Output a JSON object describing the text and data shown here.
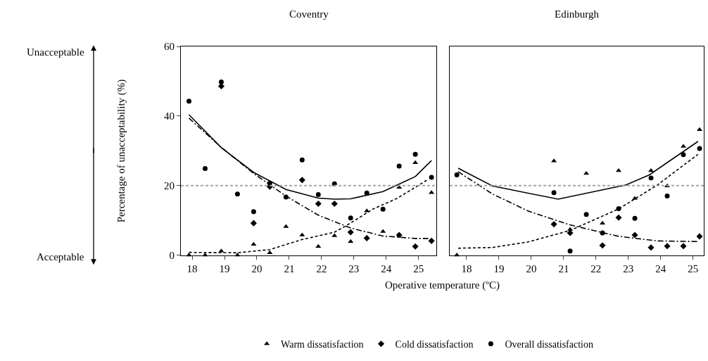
{
  "chart_data": [
    {
      "type": "scatter",
      "title": "Coventry",
      "xlabel": "Operative temperature (ºC)",
      "ylabel": "Percentage of unacceptability (%)",
      "annotations": [
        "Unacceptable",
        "Acceptable"
      ],
      "xlim": [
        17.65,
        25.55
      ],
      "xticks": [
        18,
        19,
        20,
        21,
        22,
        23,
        24,
        25
      ],
      "ylim": [
        0,
        60
      ],
      "yticks": [
        0,
        20,
        40,
        60
      ],
      "legend": "bottom",
      "ref_lines": [
        {
          "axis": "y",
          "value": 20,
          "color": "#a6a6a6",
          "line_style": "dashed"
        }
      ],
      "series": [
        {
          "type": "scatter",
          "name": "Warm dissatisfaction",
          "marker": "triangle",
          "color": "#000000",
          "x": [
            17.9,
            18.4,
            18.9,
            19.4,
            19.9,
            20.4,
            20.9,
            21.4,
            21.9,
            22.4,
            22.9,
            23.4,
            23.9,
            24.4,
            24.9,
            25.4
          ],
          "values": [
            0,
            0,
            1.2,
            0,
            3.1,
            0.7,
            8.2,
            5.8,
            2.5,
            5.6,
            3.9,
            12.7,
            6.8,
            19.5,
            26.6,
            18.0
          ]
        },
        {
          "type": "scatter",
          "name": "Cold dissatisfaction",
          "marker": "diamond",
          "color": "#000000",
          "x": [
            18.9,
            19.9,
            20.4,
            21.4,
            21.9,
            22.4,
            22.9,
            23.4,
            24.4,
            24.9,
            25.4
          ],
          "values": [
            48.6,
            9.2,
            19.7,
            21.6,
            14.8,
            14.8,
            6.6,
            4.9,
            5.8,
            2.5,
            4.1
          ]
        },
        {
          "type": "scatter",
          "name": "Overall dissatisfaction",
          "marker": "circle",
          "color": "#000000",
          "x": [
            17.9,
            18.4,
            18.9,
            19.4,
            19.9,
            20.4,
            20.9,
            21.4,
            21.9,
            22.4,
            22.9,
            23.4,
            23.9,
            24.4,
            24.9,
            25.4
          ],
          "values": [
            44.3,
            24.9,
            49.8,
            17.6,
            12.5,
            20.7,
            16.7,
            27.4,
            17.4,
            20.5,
            10.7,
            17.9,
            13.2,
            25.6,
            29.0,
            22.4
          ]
        },
        {
          "type": "line",
          "line_style": "dashed",
          "color": "#000000",
          "x": [
            17.9,
            19.4,
            20.4,
            21.4,
            22.4,
            22.75,
            23.6,
            24.33,
            25.3
          ],
          "values": [
            0.8,
            0.7,
            1.6,
            4.5,
            6.6,
            8.4,
            13.3,
            16.3,
            21.8
          ]
        },
        {
          "type": "line",
          "line_style": "dashdot",
          "color": "#000000",
          "x": [
            17.9,
            18.9,
            19.9,
            20.9,
            21.9,
            22.9,
            23.9,
            24.9,
            25.3
          ],
          "values": [
            39.4,
            31.0,
            23.5,
            17.0,
            11.5,
            7.8,
            5.5,
            4.8,
            4.8
          ]
        },
        {
          "type": "line",
          "line_style": "solid",
          "color": "#000000",
          "x": [
            17.9,
            18.9,
            19.9,
            20.9,
            21.9,
            22.4,
            22.9,
            23.9,
            24.9,
            25.4
          ],
          "values": [
            40.4,
            30.9,
            23.8,
            18.9,
            16.4,
            16.1,
            16.2,
            18.3,
            22.6,
            27.2
          ]
        }
      ]
    },
    {
      "type": "scatter",
      "title": "Edinburgh",
      "xlim": [
        17.48,
        25.33
      ],
      "xticks": [
        18,
        19,
        20,
        21,
        22,
        23,
        24,
        25
      ],
      "ylim": [
        0,
        60
      ],
      "yticks": [
        0,
        20,
        40,
        60
      ],
      "tick_labels": "x",
      "ref_lines": [
        {
          "axis": "y",
          "value": 20,
          "color": "#a6a6a6",
          "line_style": "dashed"
        }
      ],
      "series": [
        {
          "type": "scatter",
          "marker": "triangle",
          "color": "#000000",
          "x": [
            17.7,
            20.7,
            21.2,
            21.7,
            22.2,
            22.7,
            23.2,
            23.7,
            24.2,
            24.7,
            25.2
          ],
          "values": [
            0,
            27.1,
            7.4,
            23.5,
            9.2,
            24.3,
            16.3,
            24.3,
            19.9,
            31.3,
            36.1
          ]
        },
        {
          "type": "scatter",
          "marker": "diamond",
          "color": "#000000",
          "x": [
            20.7,
            21.2,
            22.2,
            22.7,
            23.2,
            23.7,
            24.2,
            24.7,
            25.2
          ],
          "values": [
            8.9,
            6.4,
            2.8,
            10.8,
            5.8,
            2.2,
            2.6,
            2.6,
            5.4
          ]
        },
        {
          "type": "scatter",
          "marker": "circle",
          "color": "#000000",
          "x": [
            17.7,
            20.7,
            21.2,
            21.7,
            22.2,
            22.7,
            23.2,
            23.7,
            24.2,
            24.7,
            25.2
          ],
          "values": [
            23.1,
            18.0,
            1.2,
            11.7,
            6.4,
            13.4,
            10.6,
            22.2,
            17.0,
            28.9,
            30.7
          ]
        },
        {
          "type": "line",
          "line_style": "dashed",
          "color": "#000000",
          "x": [
            17.74,
            18.8,
            19.9,
            21.2,
            22.7,
            23.9,
            25.15
          ],
          "values": [
            2.0,
            2.2,
            3.8,
            7.1,
            13.3,
            20.2,
            29.0
          ]
        },
        {
          "type": "line",
          "line_style": "dashdot",
          "color": "#000000",
          "x": [
            17.74,
            18.8,
            19.9,
            21.2,
            22.7,
            23.9,
            25.15
          ],
          "values": [
            24.0,
            17.6,
            12.7,
            8.7,
            5.4,
            4.1,
            3.9
          ]
        },
        {
          "type": "line",
          "line_style": "solid",
          "color": "#000000",
          "x": [
            17.74,
            18.8,
            20.83,
            22.93,
            23.65,
            25.15
          ],
          "values": [
            25.0,
            19.9,
            16.1,
            20.2,
            23.1,
            32.7
          ]
        }
      ]
    }
  ]
}
